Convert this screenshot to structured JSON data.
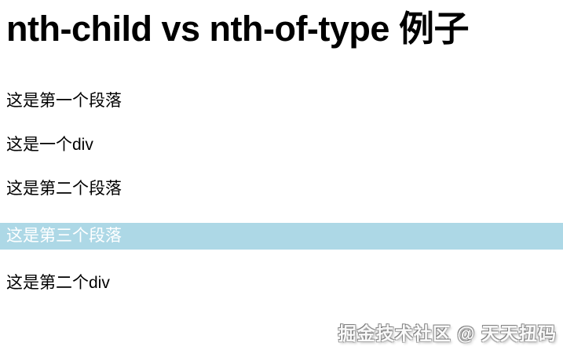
{
  "page_title": "nth-child vs nth-of-type 例子",
  "content": {
    "items": [
      {
        "type": "p",
        "label": "这是第一个段落",
        "highlighted": false
      },
      {
        "type": "div",
        "label": "这是一个div",
        "highlighted": false
      },
      {
        "type": "p",
        "label": "这是第二个段落",
        "highlighted": false
      },
      {
        "type": "p",
        "label": "这是第三个段落",
        "highlighted": true
      },
      {
        "type": "div",
        "label": "这是第二个div",
        "highlighted": false
      }
    ]
  },
  "watermark": {
    "text": "掘金技术社区 @ 天天扭码"
  },
  "colors": {
    "page_bg": "#ffffff",
    "body_text": "#000000",
    "highlight_bg": "#add8e6",
    "highlight_text": "#ffffff"
  }
}
